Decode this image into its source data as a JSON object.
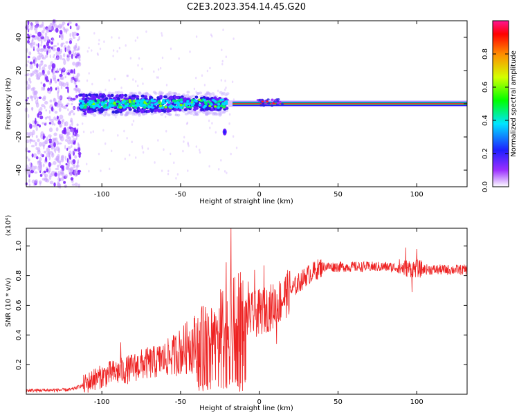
{
  "page": {
    "title": "C2E3.2023.354.14.45.G20"
  },
  "chart_data": [
    {
      "type": "heatmap",
      "title": "C2E3.2023.354.14.45.G20",
      "xlabel": "Height of straight line (km)",
      "ylabel": "Frequency (Hz)",
      "xlim": [
        -148,
        132
      ],
      "ylim": [
        -50,
        50
      ],
      "xticks": [
        -100,
        -50,
        0,
        50,
        100
      ],
      "yticks": [
        -40,
        -20,
        0,
        20,
        40
      ],
      "colorbar": {
        "label": "Normalized spectral amplitude",
        "range": [
          0,
          1
        ],
        "ticks": [
          "0.0",
          "0.2",
          "0.4",
          "0.6",
          "0.8"
        ],
        "colors": [
          "#ffffff",
          "#9b30ff",
          "#1f1fff",
          "#00e5ff",
          "#00ff00",
          "#d4ff00",
          "#ff8c00",
          "#ff0000",
          "#ff1493"
        ]
      },
      "description_values": {
        "noise_region_x": [
          -148,
          -114
        ],
        "broad_band_x": [
          -114,
          -20
        ],
        "broad_band_freq_halfwidth": 5,
        "narrow_line_x": [
          -20,
          132
        ],
        "narrow_line_freq": 0
      }
    },
    {
      "type": "line",
      "xlabel": "Height of straight line (km)",
      "ylabel": "SNR (10 * v/v)",
      "yunit": "(x10⁴)",
      "xlim": [
        -148,
        132
      ],
      "ylim": [
        0,
        1.12
      ],
      "xticks": [
        -100,
        -50,
        0,
        50,
        100
      ],
      "yticks": [
        0.2,
        0.4,
        0.6,
        0.8,
        1.0
      ],
      "series": [
        {
          "color": "#ee2222",
          "envelope": [
            [
              -148,
              0.025
            ],
            [
              -120,
              0.03
            ],
            [
              -112,
              0.06
            ],
            [
              -105,
              0.1
            ],
            [
              -95,
              0.14
            ],
            [
              -85,
              0.16
            ],
            [
              -75,
              0.2
            ],
            [
              -65,
              0.22
            ],
            [
              -55,
              0.26
            ],
            [
              -45,
              0.32
            ],
            [
              -35,
              0.38
            ],
            [
              -25,
              0.44
            ],
            [
              -18,
              0.48
            ],
            [
              -12,
              0.5
            ],
            [
              -8,
              0.52
            ],
            [
              0,
              0.55
            ],
            [
              10,
              0.6
            ],
            [
              20,
              0.7
            ],
            [
              30,
              0.8
            ],
            [
              40,
              0.86
            ],
            [
              60,
              0.86
            ],
            [
              80,
              0.86
            ],
            [
              95,
              0.85
            ],
            [
              110,
              0.84
            ],
            [
              132,
              0.84
            ]
          ],
          "spikes": [
            [
              -105,
              0.17
            ],
            [
              -88,
              0.35
            ],
            [
              -72,
              0.3
            ],
            [
              -63,
              0.32
            ],
            [
              -55,
              0.36
            ],
            [
              -45,
              0.39
            ],
            [
              -38,
              0.43
            ],
            [
              -32,
              0.4
            ],
            [
              -27,
              0.43
            ],
            [
              -21,
              0.89
            ],
            [
              -18,
              1.12
            ],
            [
              -15,
              0.48
            ],
            [
              -7,
              0.76
            ],
            [
              -3,
              0.84
            ],
            [
              3,
              0.87
            ],
            [
              11,
              0.34
            ],
            [
              17,
              0.71
            ],
            [
              93,
              0.99
            ],
            [
              100,
              0.98
            ],
            [
              97,
              0.69
            ]
          ]
        }
      ]
    }
  ]
}
